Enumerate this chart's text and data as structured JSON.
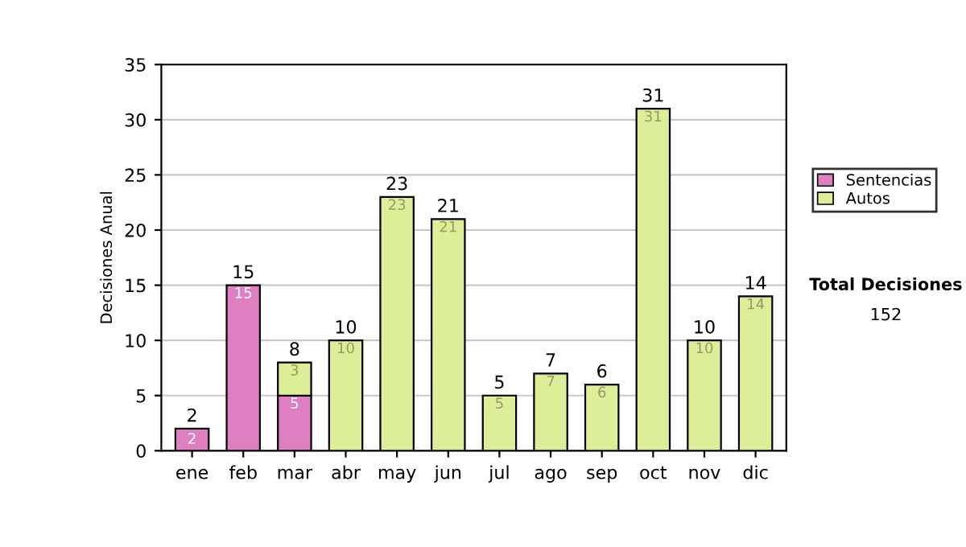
{
  "chart_data": {
    "type": "bar",
    "stacked": true,
    "ylabel": "Decisiones Anual",
    "categories": [
      "ene",
      "feb",
      "mar",
      "abr",
      "may",
      "jun",
      "jul",
      "ago",
      "sep",
      "oct",
      "nov",
      "dic"
    ],
    "series": [
      {
        "name": "Sentencias",
        "color": "#dd7fc0",
        "values": [
          2,
          15,
          5,
          null,
          null,
          null,
          null,
          null,
          null,
          null,
          null,
          null
        ]
      },
      {
        "name": "Autos",
        "color": "#ddee99",
        "values": [
          null,
          null,
          3,
          10,
          23,
          21,
          5,
          7,
          6,
          31,
          10,
          14
        ]
      }
    ],
    "ylim": [
      0,
      35
    ],
    "yticks": [
      0,
      5,
      10,
      15,
      20,
      25,
      30,
      35
    ],
    "grid": "y",
    "legend": "right",
    "data_labels": true,
    "totals": [
      "2",
      "15",
      "8",
      "10",
      "23",
      "21",
      "5",
      "7",
      "6",
      "31",
      "10",
      "14"
    ],
    "annotations": [
      "Total Decisiones",
      "152"
    ]
  }
}
